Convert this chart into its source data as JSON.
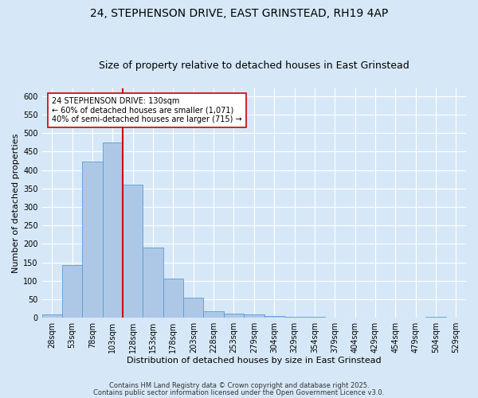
{
  "title_line1": "24, STEPHENSON DRIVE, EAST GRINSTEAD, RH19 4AP",
  "title_line2": "Size of property relative to detached houses in East Grinstead",
  "xlabel": "Distribution of detached houses by size in East Grinstead",
  "ylabel": "Number of detached properties",
  "bar_labels": [
    "28sqm",
    "53sqm",
    "78sqm",
    "103sqm",
    "128sqm",
    "153sqm",
    "178sqm",
    "203sqm",
    "228sqm",
    "253sqm",
    "279sqm",
    "304sqm",
    "329sqm",
    "354sqm",
    "379sqm",
    "404sqm",
    "429sqm",
    "454sqm",
    "479sqm",
    "504sqm",
    "529sqm"
  ],
  "bar_values": [
    8,
    143,
    422,
    474,
    360,
    190,
    105,
    54,
    17,
    11,
    8,
    5,
    3,
    2,
    1,
    1,
    0,
    0,
    0,
    3,
    0
  ],
  "bar_color": "#adc8e6",
  "bar_edgecolor": "#5b9bd5",
  "background_color": "#d6e8f7",
  "plot_bg_color": "#d6e8f7",
  "grid_color": "#ffffff",
  "vline_x_label": "128sqm",
  "vline_color": "#cc0000",
  "annotation_text": "24 STEPHENSON DRIVE: 130sqm\n← 60% of detached houses are smaller (1,071)\n40% of semi-detached houses are larger (715) →",
  "annotation_box_facecolor": "#ffffff",
  "annotation_box_edgecolor": "#cc0000",
  "ylim": [
    0,
    620
  ],
  "yticks": [
    0,
    50,
    100,
    150,
    200,
    250,
    300,
    350,
    400,
    450,
    500,
    550,
    600
  ],
  "footer_line1": "Contains HM Land Registry data © Crown copyright and database right 2025.",
  "footer_line2": "Contains public sector information licensed under the Open Government Licence v3.0.",
  "title_fontsize": 10,
  "subtitle_fontsize": 9,
  "axis_label_fontsize": 8,
  "tick_fontsize": 7,
  "annotation_fontsize": 7,
  "footer_fontsize": 6
}
